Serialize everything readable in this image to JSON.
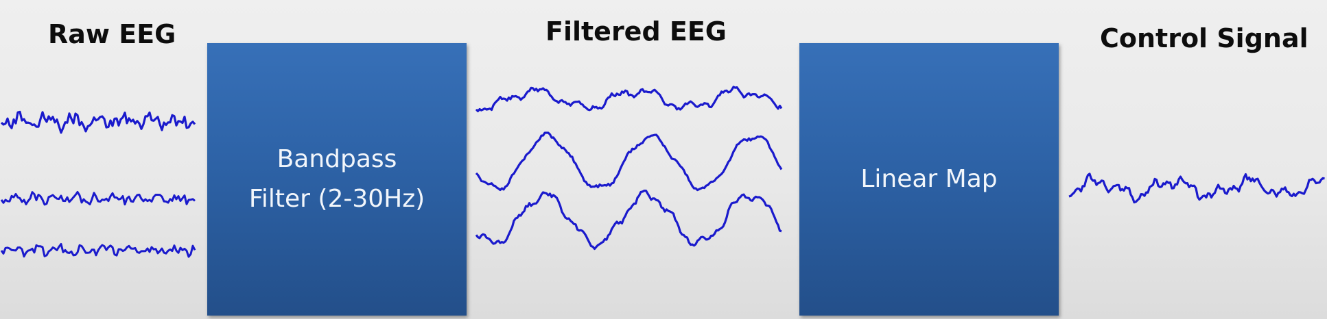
{
  "labels": {
    "raw": "Raw EEG",
    "filtered": "Filtered EEG",
    "control": "Control Signal"
  },
  "blocks": {
    "bandpass": {
      "line1": "Bandpass",
      "line2": "Filter (2-30Hz)"
    },
    "linear": {
      "line1": "Linear Map"
    }
  },
  "colors": {
    "waveform": "#1a1acc",
    "block": "#2d62a6",
    "block_text": "#f2f6fb",
    "label_text": "#0d0d0d"
  }
}
